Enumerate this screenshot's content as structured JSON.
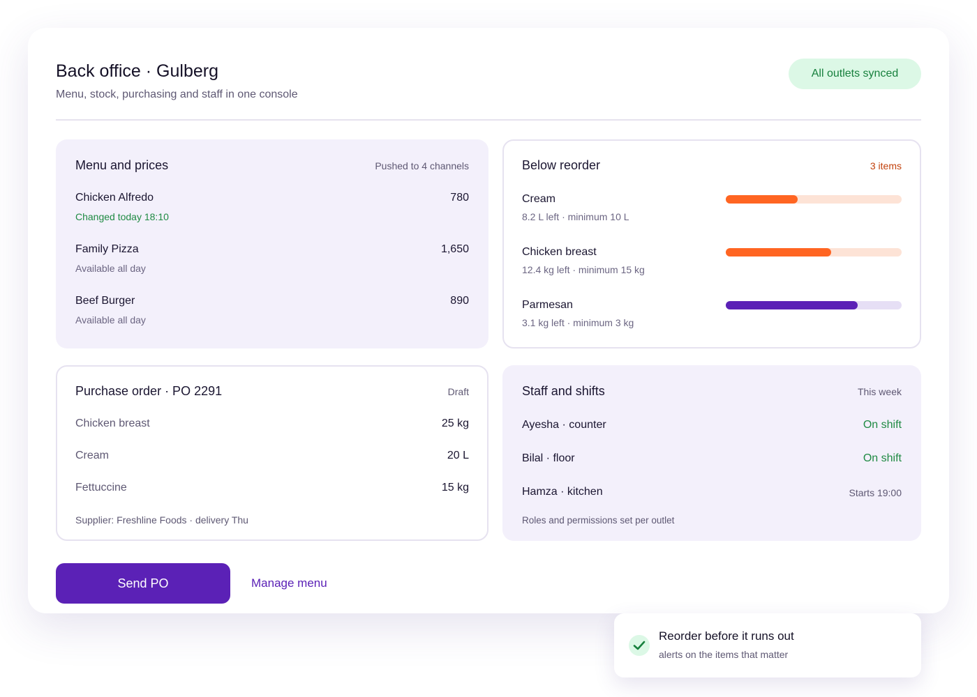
{
  "header": {
    "title": "Back office · Gulberg",
    "subtitle": "Menu, stock, purchasing and staff in one console",
    "status": "All outlets synced"
  },
  "menu": {
    "title": "Menu and prices",
    "meta": "Pushed to 4 channels",
    "items": [
      {
        "name": "Chicken Alfredo",
        "price": "780",
        "note": "Changed today 18:10"
      },
      {
        "name": "Family Pizza",
        "price": "1,650",
        "note": "Available all day"
      },
      {
        "name": "Beef Burger",
        "price": "890",
        "note": "Available all day"
      }
    ]
  },
  "reorder": {
    "title": "Below reorder",
    "count": "3 items",
    "items": [
      {
        "name": "Cream",
        "detail": "8.2 L left · minimum 10 L",
        "fill": 41,
        "color": "#ff6522",
        "track": "#fde3d6"
      },
      {
        "name": "Chicken breast",
        "detail": "12.4 kg left · minimum 15 kg",
        "fill": 60,
        "color": "#ff6522",
        "track": "#fde3d6"
      },
      {
        "name": "Parmesan",
        "detail": "3.1 kg left · minimum 3 kg",
        "fill": 75,
        "color": "#5b21b6",
        "track": "#e6dff5"
      }
    ]
  },
  "purchase_order": {
    "title": "Purchase order · PO 2291",
    "status": "Draft",
    "lines": [
      {
        "item": "Chicken breast",
        "qty": "25 kg"
      },
      {
        "item": "Cream",
        "qty": "20 L"
      },
      {
        "item": "Fettuccine",
        "qty": "15 kg"
      }
    ],
    "footer": "Supplier: Freshline Foods · delivery Thu"
  },
  "staff": {
    "title": "Staff and shifts",
    "period": "This week",
    "people": [
      {
        "name": "Ayesha · counter",
        "status": "On shift",
        "active": true
      },
      {
        "name": "Bilal · floor",
        "status": "On shift",
        "active": true
      },
      {
        "name": "Hamza · kitchen",
        "status": "Starts 19:00",
        "active": false
      }
    ],
    "footer": "Roles and permissions set per outlet"
  },
  "actions": {
    "primary": "Send PO",
    "secondary": "Manage menu"
  },
  "toast": {
    "title": "Reorder before it runs out",
    "subtitle": "alerts on the items that matter"
  }
}
